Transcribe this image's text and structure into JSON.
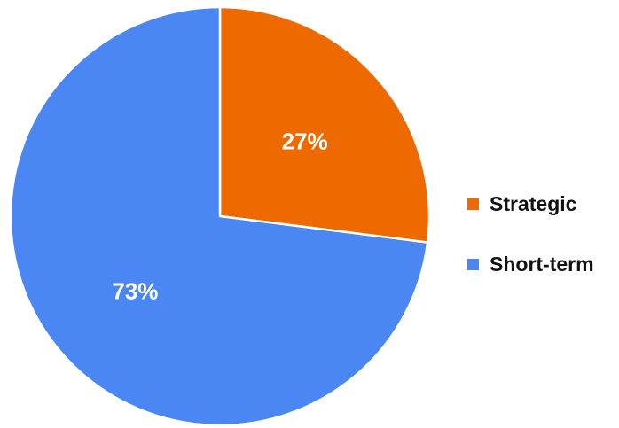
{
  "chart_data": {
    "type": "pie",
    "title": "",
    "start_angle_deg": 0,
    "direction": "clockwise",
    "slices": [
      {
        "label": "Strategic",
        "value": 27,
        "display": "27%",
        "color": "#ee6a00"
      },
      {
        "label": "Short-term",
        "value": 73,
        "display": "73%",
        "color": "#4a87f3"
      }
    ],
    "slice_border_color": "#ffffff",
    "legend": {
      "position": "right",
      "items": [
        "Strategic",
        "Short-term"
      ]
    }
  }
}
